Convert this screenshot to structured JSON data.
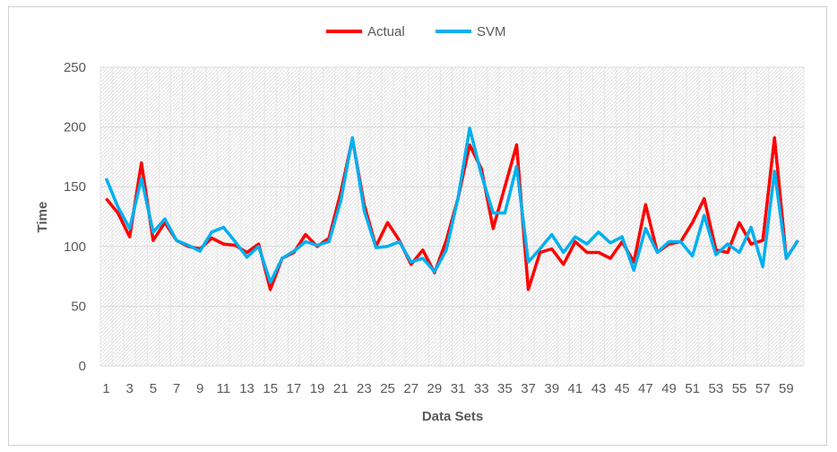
{
  "chart_data": {
    "type": "line",
    "title": "",
    "xlabel": "Data Sets",
    "ylabel": "Time",
    "ylim": [
      0,
      250
    ],
    "yticks": [
      0,
      50,
      100,
      150,
      200,
      250
    ],
    "x": [
      1,
      2,
      3,
      4,
      5,
      6,
      7,
      8,
      9,
      10,
      11,
      12,
      13,
      14,
      15,
      16,
      17,
      18,
      19,
      20,
      21,
      22,
      23,
      24,
      25,
      26,
      27,
      28,
      29,
      30,
      31,
      32,
      33,
      34,
      35,
      36,
      37,
      38,
      39,
      40,
      41,
      42,
      43,
      44,
      45,
      46,
      47,
      48,
      49,
      50,
      51,
      52,
      53,
      54,
      55,
      56,
      57,
      58,
      59,
      60
    ],
    "xtick_labels": [
      "1",
      "3",
      "5",
      "7",
      "9",
      "11",
      "13",
      "15",
      "17",
      "19",
      "21",
      "23",
      "25",
      "27",
      "29",
      "31",
      "33",
      "35",
      "37",
      "39",
      "41",
      "43",
      "45",
      "47",
      "49",
      "51",
      "53",
      "55",
      "57",
      "59"
    ],
    "legend_position": "top-center",
    "grid": true,
    "series": [
      {
        "name": "Actual",
        "color": "#ff0000",
        "values": [
          140,
          128,
          108,
          170,
          105,
          120,
          105,
          100,
          98,
          107,
          102,
          101,
          95,
          102,
          64,
          90,
          95,
          110,
          100,
          107,
          145,
          190,
          135,
          100,
          120,
          105,
          85,
          97,
          78,
          105,
          140,
          185,
          165,
          115,
          150,
          185,
          64,
          95,
          98,
          85,
          104,
          95,
          95,
          90,
          104,
          87,
          135,
          95,
          102,
          104,
          120,
          140,
          97,
          95,
          120,
          102,
          105,
          191,
          90,
          105
        ]
      },
      {
        "name": "SVM",
        "color": "#00b0f0",
        "values": [
          157,
          133,
          115,
          157,
          112,
          123,
          105,
          101,
          96,
          112,
          116,
          104,
          91,
          100,
          70,
          90,
          96,
          104,
          101,
          104,
          138,
          191,
          130,
          99,
          100,
          104,
          87,
          90,
          79,
          97,
          140,
          199,
          160,
          128,
          128,
          167,
          87,
          98,
          110,
          95,
          108,
          102,
          112,
          103,
          108,
          80,
          115,
          95,
          104,
          104,
          92,
          126,
          93,
          102,
          95,
          116,
          83,
          163,
          90,
          105
        ]
      }
    ]
  }
}
